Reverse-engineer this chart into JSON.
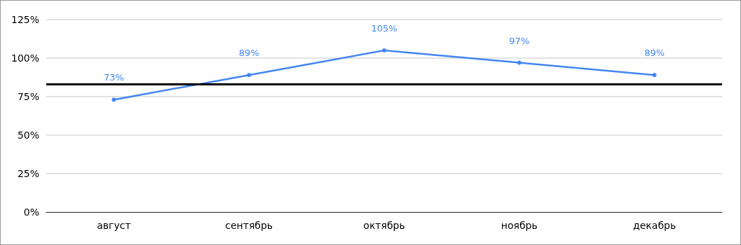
{
  "chart_data": {
    "type": "line",
    "categories": [
      "август",
      "сентябрь",
      "октябрь",
      "ноябрь",
      "декабрь"
    ],
    "series": [
      {
        "color": "#4285f4",
        "values": [
          73,
          89,
          105,
          97,
          89
        ],
        "value_labels": [
          "73%",
          "89%",
          "105%",
          "97%",
          "89%"
        ]
      }
    ],
    "ylim": [
      0,
      125
    ],
    "yticks": [
      {
        "value": 0,
        "label": "0%"
      },
      {
        "value": 25,
        "label": "25%"
      },
      {
        "value": 50,
        "label": "50%"
      },
      {
        "value": 75,
        "label": "75%"
      },
      {
        "value": 100,
        "label": "100%"
      },
      {
        "value": 125,
        "label": "125%"
      }
    ],
    "ref_lines": [
      {
        "axis": "y",
        "value": 83,
        "color": "#000000"
      }
    ],
    "grid": "y",
    "marker": "circle",
    "line_style": "solid"
  }
}
